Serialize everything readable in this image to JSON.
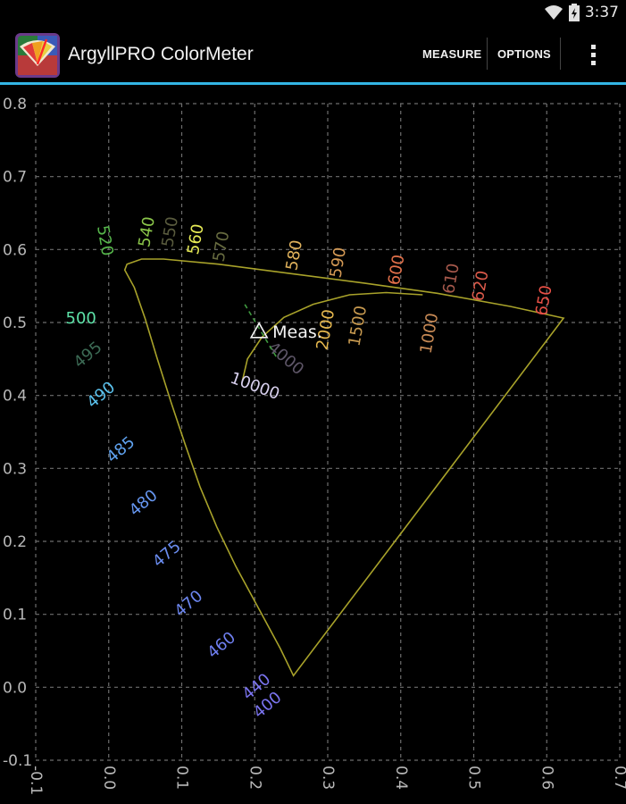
{
  "status_bar": {
    "time": "3:37",
    "icons": [
      "wifi-icon",
      "battery-icon"
    ]
  },
  "action_bar": {
    "title": "ArgyllPRO ColorMeter",
    "measure_label": "MEASURE",
    "options_label": "OPTIONS",
    "overflow_icon": "overflow-menu-icon",
    "accent_color": "#33b5e5"
  },
  "chart_data": {
    "type": "scatter",
    "xlim": [
      -0.1,
      0.7
    ],
    "ylim": [
      -0.1,
      0.8
    ],
    "grid": true,
    "x_ticks": [
      "-0.1",
      "0.0",
      "0.1",
      "0.2",
      "0.3",
      "0.4",
      "0.5",
      "0.6",
      "0.7"
    ],
    "y_ticks": [
      "0.8",
      "0.7",
      "0.6",
      "0.5",
      "0.4",
      "0.3",
      "0.2",
      "0.1",
      "0.0",
      "-0.1"
    ],
    "outline_color": "#a8a22a",
    "spectral_locus": [
      [
        0.253,
        0.016
      ],
      [
        0.235,
        0.053
      ],
      [
        0.207,
        0.105
      ],
      [
        0.174,
        0.166
      ],
      [
        0.148,
        0.22
      ],
      [
        0.125,
        0.275
      ],
      [
        0.105,
        0.332
      ],
      [
        0.085,
        0.392
      ],
      [
        0.066,
        0.452
      ],
      [
        0.05,
        0.505
      ],
      [
        0.035,
        0.548
      ],
      [
        0.022,
        0.572
      ],
      [
        0.025,
        0.58
      ],
      [
        0.045,
        0.587
      ],
      [
        0.075,
        0.587
      ],
      [
        0.15,
        0.58
      ],
      [
        0.25,
        0.567
      ],
      [
        0.35,
        0.554
      ],
      [
        0.45,
        0.54
      ],
      [
        0.55,
        0.522
      ],
      [
        0.623,
        0.506
      ]
    ],
    "planckian_locus": [
      [
        0.183,
        0.42
      ],
      [
        0.19,
        0.45
      ],
      [
        0.21,
        0.48
      ],
      [
        0.24,
        0.507
      ],
      [
        0.28,
        0.525
      ],
      [
        0.33,
        0.538
      ],
      [
        0.38,
        0.541
      ],
      [
        0.43,
        0.538
      ]
    ],
    "wavelength_labels": [
      {
        "text": "400",
        "x": 0.218,
        "y": -0.025,
        "color": "#7b74f0",
        "angle": -40
      },
      {
        "text": "440",
        "x": 0.203,
        "y": 0.0,
        "color": "#7b74f0",
        "angle": -40
      },
      {
        "text": "460",
        "x": 0.155,
        "y": 0.057,
        "color": "#6f7ff0",
        "angle": -40
      },
      {
        "text": "470",
        "x": 0.11,
        "y": 0.114,
        "color": "#6c86ef",
        "angle": -40
      },
      {
        "text": "475",
        "x": 0.08,
        "y": 0.182,
        "color": "#6a8cef",
        "angle": -40
      },
      {
        "text": "480",
        "x": 0.048,
        "y": 0.252,
        "color": "#6696f0",
        "angle": -40
      },
      {
        "text": "485",
        "x": 0.017,
        "y": 0.325,
        "color": "#5fa2ef",
        "angle": -40
      },
      {
        "text": "490",
        "x": -0.01,
        "y": 0.4,
        "color": "#5bc2ee",
        "angle": -40
      },
      {
        "text": "495",
        "x": -0.028,
        "y": 0.455,
        "color": "#3c6b55",
        "angle": -40
      },
      {
        "text": "500",
        "x": -0.038,
        "y": 0.505,
        "color": "#5de2a8",
        "angle": 0
      },
      {
        "text": "520",
        "x": -0.006,
        "y": 0.612,
        "color": "#56b64b",
        "angle": 80
      },
      {
        "text": "540",
        "x": 0.053,
        "y": 0.624,
        "color": "#8bc64a",
        "angle": -80
      },
      {
        "text": "550",
        "x": 0.085,
        "y": 0.624,
        "color": "#5a5c3e",
        "angle": -80
      },
      {
        "text": "560",
        "x": 0.12,
        "y": 0.614,
        "color": "#e6ea55",
        "angle": -80
      },
      {
        "text": "570",
        "x": 0.155,
        "y": 0.604,
        "color": "#666a3f",
        "angle": -80
      },
      {
        "text": "580",
        "x": 0.255,
        "y": 0.592,
        "color": "#e0b25c",
        "angle": -80
      },
      {
        "text": "590",
        "x": 0.315,
        "y": 0.582,
        "color": "#d59a55",
        "angle": -80
      },
      {
        "text": "600",
        "x": 0.395,
        "y": 0.572,
        "color": "#e2704a",
        "angle": -80
      },
      {
        "text": "610",
        "x": 0.47,
        "y": 0.56,
        "color": "#a7594c",
        "angle": -80
      },
      {
        "text": "620",
        "x": 0.51,
        "y": 0.55,
        "color": "#dc5a4a",
        "angle": -80
      },
      {
        "text": "650",
        "x": 0.597,
        "y": 0.53,
        "color": "#e85046",
        "angle": -80
      }
    ],
    "cct_labels": [
      {
        "text": "10000",
        "x": 0.2,
        "y": 0.412,
        "color": "#d8d0ee",
        "angle": 20
      },
      {
        "text": "4000",
        "x": 0.242,
        "y": 0.45,
        "color": "#5e5668",
        "angle": 40
      },
      {
        "text": "2000",
        "x": 0.298,
        "y": 0.49,
        "color": "#e6b84e",
        "angle": -80
      },
      {
        "text": "1500",
        "x": 0.342,
        "y": 0.495,
        "color": "#c89a50",
        "angle": -80
      },
      {
        "text": "1000",
        "x": 0.44,
        "y": 0.485,
        "color": "#c88a55",
        "angle": -80
      }
    ],
    "measurement": {
      "label": "Meas.",
      "x": 0.206,
      "y": 0.488,
      "color": "#f4f4f4",
      "isotemp_color": "#3f9a3f"
    }
  }
}
